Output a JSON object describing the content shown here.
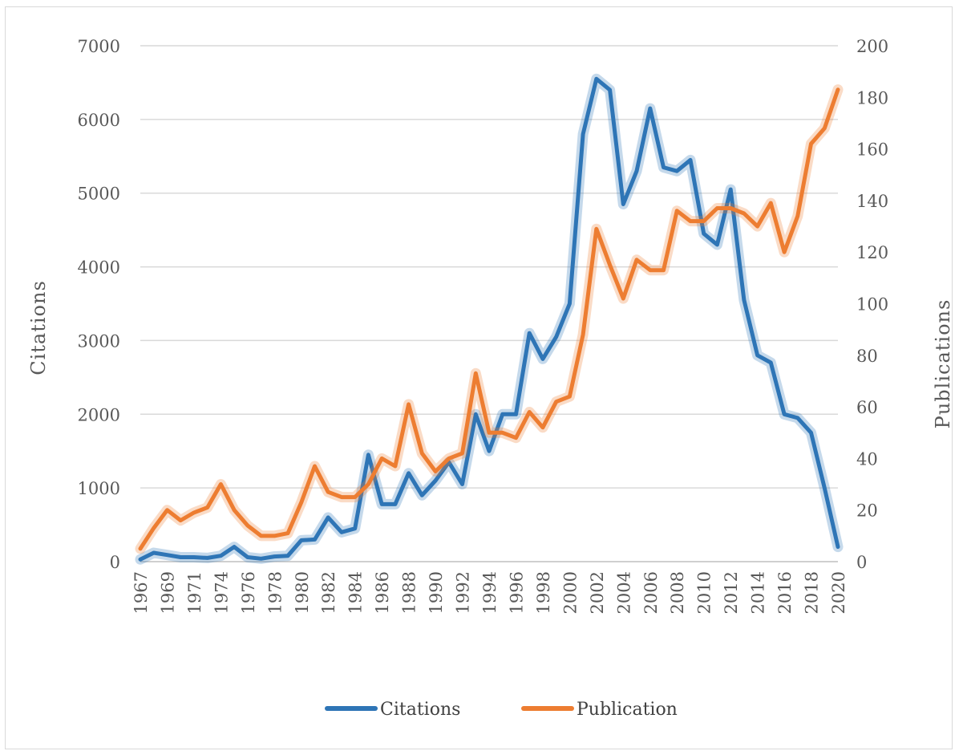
{
  "chart_data": {
    "type": "line",
    "title": "",
    "ylabel": "Citations",
    "y2label": "Publications",
    "ylim": [
      0,
      7000
    ],
    "y2lim": [
      0,
      200
    ],
    "yticks": [
      "0",
      "1000",
      "2000",
      "3000",
      "4000",
      "5000",
      "6000",
      "7000"
    ],
    "y2ticks": [
      "0",
      "20",
      "40",
      "60",
      "80",
      "100",
      "120",
      "140",
      "160",
      "180",
      "200"
    ],
    "xtick_labels": [
      "1967",
      "1969",
      "1971",
      "1974",
      "1976",
      "1978",
      "1980",
      "1982",
      "1984",
      "1986",
      "1988",
      "1990",
      "1992",
      "1994",
      "1996",
      "1998",
      "2000",
      "2002",
      "2004",
      "2006",
      "2008",
      "2010",
      "2012",
      "2014",
      "2016",
      "2018",
      "2020"
    ],
    "x": [
      "1967",
      "1968",
      "1969",
      "1970",
      "1971",
      "1972",
      "1974",
      "1975",
      "1976",
      "1977",
      "1978",
      "1979",
      "1980",
      "1981",
      "1982",
      "1983",
      "1984",
      "1985",
      "1986",
      "1987",
      "1988",
      "1989",
      "1990",
      "1991",
      "1992",
      "1993",
      "1994",
      "1995",
      "1996",
      "1997",
      "1998",
      "1999",
      "2000",
      "2001",
      "2002",
      "2003",
      "2004",
      "2005",
      "2006",
      "2007",
      "2008",
      "2009",
      "2010",
      "2011",
      "2012",
      "2013",
      "2014",
      "2015",
      "2016",
      "2017",
      "2018",
      "2019",
      "2020"
    ],
    "legend_position": "bottom",
    "grid": true,
    "series": [
      {
        "name": "Citations",
        "axis": "left",
        "color": "#2e75b6",
        "values": [
          30,
          120,
          90,
          60,
          60,
          50,
          80,
          200,
          60,
          40,
          70,
          80,
          290,
          300,
          600,
          400,
          450,
          1450,
          780,
          780,
          1200,
          900,
          1100,
          1350,
          1050,
          2000,
          1500,
          2000,
          2000,
          3100,
          2750,
          3050,
          3500,
          5800,
          6550,
          6400,
          4850,
          5300,
          6150,
          5350,
          5300,
          5450,
          4450,
          4300,
          5050,
          3550,
          2800,
          2700,
          2000,
          1950,
          1750,
          1000,
          200
        ]
      },
      {
        "name": "Publication",
        "axis": "right",
        "color": "#ed7d31",
        "values": [
          5,
          13,
          20,
          16,
          19,
          21,
          30,
          20,
          14,
          10,
          10,
          11,
          23,
          37,
          27,
          25,
          25,
          30,
          40,
          37,
          61,
          42,
          35,
          40,
          42,
          73,
          50,
          50,
          48,
          58,
          52,
          62,
          64,
          88,
          129,
          115,
          102,
          117,
          113,
          113,
          136,
          132,
          132,
          137,
          137,
          135,
          130,
          139,
          120,
          134,
          162,
          168,
          183
        ]
      }
    ]
  }
}
